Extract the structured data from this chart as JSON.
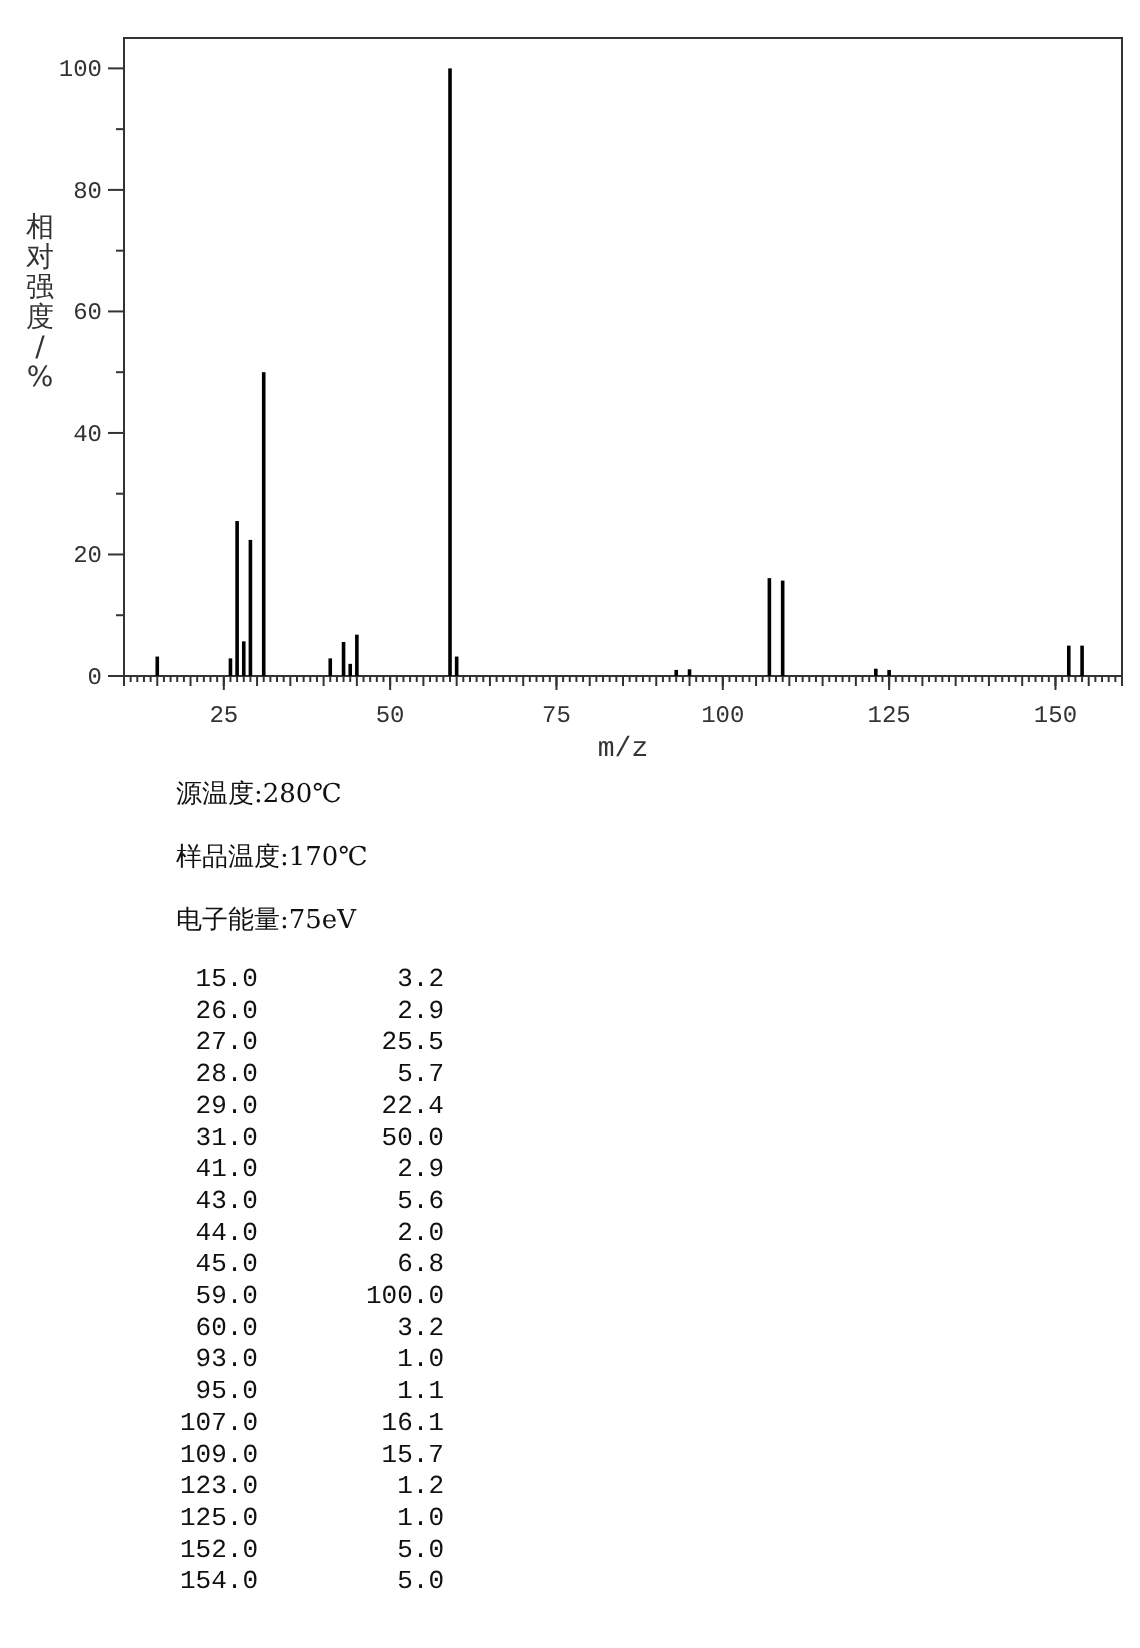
{
  "chart_data": {
    "type": "bar",
    "xlabel": "m/z",
    "ylabel": "相对强度/%",
    "x": [
      15,
      26,
      27,
      28,
      29,
      31,
      41,
      43,
      44,
      45,
      59,
      60,
      93,
      95,
      107,
      109,
      123,
      125,
      152,
      154
    ],
    "values": [
      3.2,
      2.9,
      25.5,
      5.7,
      22.4,
      50.0,
      2.9,
      5.6,
      2.0,
      6.8,
      100.0,
      3.2,
      1.0,
      1.1,
      16.1,
      15.7,
      1.2,
      1.0,
      5.0,
      5.0
    ],
    "color": "#000000",
    "xlim": [
      10,
      160
    ],
    "xticks": [
      25,
      50,
      75,
      100,
      125,
      150
    ],
    "ylim": [
      0,
      105
    ],
    "yticks": [
      0,
      {
        "value": 10,
        "label": null
      },
      20,
      {
        "value": 30,
        "label": null
      },
      40,
      {
        "value": 50,
        "label": null
      },
      60,
      {
        "value": 70,
        "label": null
      },
      80,
      {
        "value": 90,
        "label": null
      },
      100
    ],
    "grid": false,
    "annotations": [
      "源温度:280℃",
      "样品温度:170℃",
      "电子能量:75eV",
      "15.0",
      "3.2",
      "26.0",
      "2.9",
      "27.0",
      "25.5",
      "28.0",
      "5.7",
      "29.0",
      "22.4",
      "31.0",
      "50.0",
      "41.0",
      "2.9",
      "43.0",
      "5.6",
      "44.0",
      "2.0",
      "45.0",
      "6.8",
      "59.0",
      "100.0",
      "60.0",
      "3.2",
      "93.0",
      "1.0",
      "95.0",
      "1.1",
      "107.0",
      "16.1",
      "109.0",
      "15.7",
      "123.0",
      "1.2",
      "125.0",
      "1.0",
      "152.0",
      "5.0",
      "154.0",
      "5.0"
    ]
  }
}
